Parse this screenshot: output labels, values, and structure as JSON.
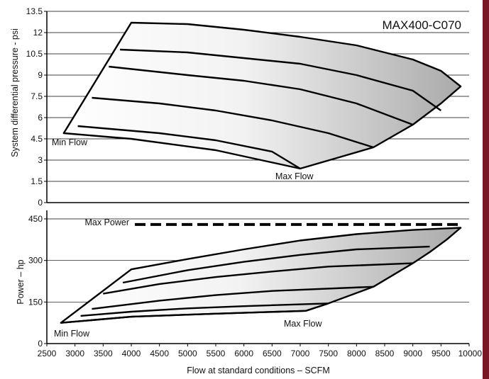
{
  "chart_data": [
    {
      "type": "area",
      "model": "MAX400-C070",
      "ylabel": "System differential pressure - psi",
      "xlim": [
        2500,
        10000
      ],
      "ylim": [
        0,
        13.5
      ],
      "yticks": [
        0,
        1.5,
        3,
        4.5,
        6,
        7.5,
        9,
        10.5,
        12,
        13.5
      ],
      "grid": true,
      "annotations": {
        "min_flow": "Min Flow",
        "max_flow": "Max Flow"
      },
      "envelope": [
        [
          2800,
          4.9
        ],
        [
          4000,
          12.7
        ],
        [
          5000,
          12.6
        ],
        [
          6000,
          12.2
        ],
        [
          7000,
          11.7
        ],
        [
          8000,
          11.1
        ],
        [
          9000,
          10.1
        ],
        [
          9500,
          9.3
        ],
        [
          9850,
          8.2
        ],
        [
          9500,
          7.0
        ],
        [
          9000,
          5.5
        ],
        [
          8300,
          3.9
        ],
        [
          7000,
          2.4
        ],
        [
          5500,
          3.7
        ],
        [
          4000,
          4.5
        ],
        [
          2800,
          4.9
        ]
      ],
      "series": [
        {
          "values": [
            [
              3050,
              5.4
            ],
            [
              4500,
              4.9
            ],
            [
              5500,
              4.4
            ],
            [
              6500,
              3.6
            ],
            [
              7000,
              2.4
            ]
          ]
        },
        {
          "values": [
            [
              3300,
              7.4
            ],
            [
              4500,
              7.0
            ],
            [
              5500,
              6.5
            ],
            [
              6500,
              5.8
            ],
            [
              7500,
              4.9
            ],
            [
              8300,
              3.9
            ]
          ]
        },
        {
          "values": [
            [
              3600,
              9.6
            ],
            [
              5000,
              9.0
            ],
            [
              6000,
              8.6
            ],
            [
              7000,
              8.0
            ],
            [
              8000,
              7.0
            ],
            [
              9000,
              5.5
            ]
          ]
        },
        {
          "values": [
            [
              3800,
              10.8
            ],
            [
              5000,
              10.6
            ],
            [
              6000,
              10.2
            ],
            [
              7000,
              9.8
            ],
            [
              8000,
              9.0
            ],
            [
              9000,
              7.9
            ],
            [
              9500,
              6.5
            ]
          ]
        }
      ]
    },
    {
      "type": "area",
      "ylabel": "Power – hp",
      "xlabel": "Flow at standard conditions – SCFM",
      "xlim": [
        2500,
        10000
      ],
      "ylim": [
        0,
        450
      ],
      "xticks": [
        2500,
        3000,
        3500,
        4000,
        4500,
        5000,
        5500,
        6000,
        6500,
        7000,
        7500,
        8000,
        8500,
        9000,
        9500,
        10000
      ],
      "yticks": [
        0,
        150,
        300,
        450
      ],
      "grid": true,
      "annotations": {
        "min_flow": "Min Flow",
        "max_flow": "Max Flow",
        "max_power": "Max Power"
      },
      "max_power_hp": 430,
      "envelope": [
        [
          4000,
          268
        ],
        [
          5000,
          305
        ],
        [
          6000,
          340
        ],
        [
          7000,
          372
        ],
        [
          8000,
          395
        ],
        [
          9000,
          410
        ],
        [
          9850,
          418
        ],
        [
          9600,
          375
        ],
        [
          9300,
          330
        ],
        [
          9000,
          290
        ],
        [
          8300,
          205
        ],
        [
          7500,
          145
        ],
        [
          7100,
          118
        ],
        [
          5500,
          108
        ],
        [
          4000,
          97
        ],
        [
          2750,
          75
        ]
      ],
      "series": [
        {
          "values": [
            [
              2750,
              75
            ],
            [
              4000,
              97
            ],
            [
              5500,
              108
            ],
            [
              7100,
              118
            ]
          ]
        },
        {
          "values": [
            [
              3100,
              100
            ],
            [
              4000,
              115
            ],
            [
              5000,
              127
            ],
            [
              6000,
              135
            ],
            [
              7500,
              145
            ]
          ]
        },
        {
          "values": [
            [
              3300,
              125
            ],
            [
              4500,
              155
            ],
            [
              5500,
              175
            ],
            [
              6500,
              190
            ],
            [
              8300,
              205
            ]
          ]
        },
        {
          "values": [
            [
              3500,
              180
            ],
            [
              4500,
              215
            ],
            [
              5500,
              240
            ],
            [
              6500,
              260
            ],
            [
              7500,
              278
            ],
            [
              9000,
              290
            ]
          ]
        },
        {
          "values": [
            [
              3850,
              220
            ],
            [
              5000,
              265
            ],
            [
              6000,
              295
            ],
            [
              7000,
              320
            ],
            [
              8000,
              340
            ],
            [
              9300,
              350
            ]
          ]
        }
      ]
    }
  ]
}
